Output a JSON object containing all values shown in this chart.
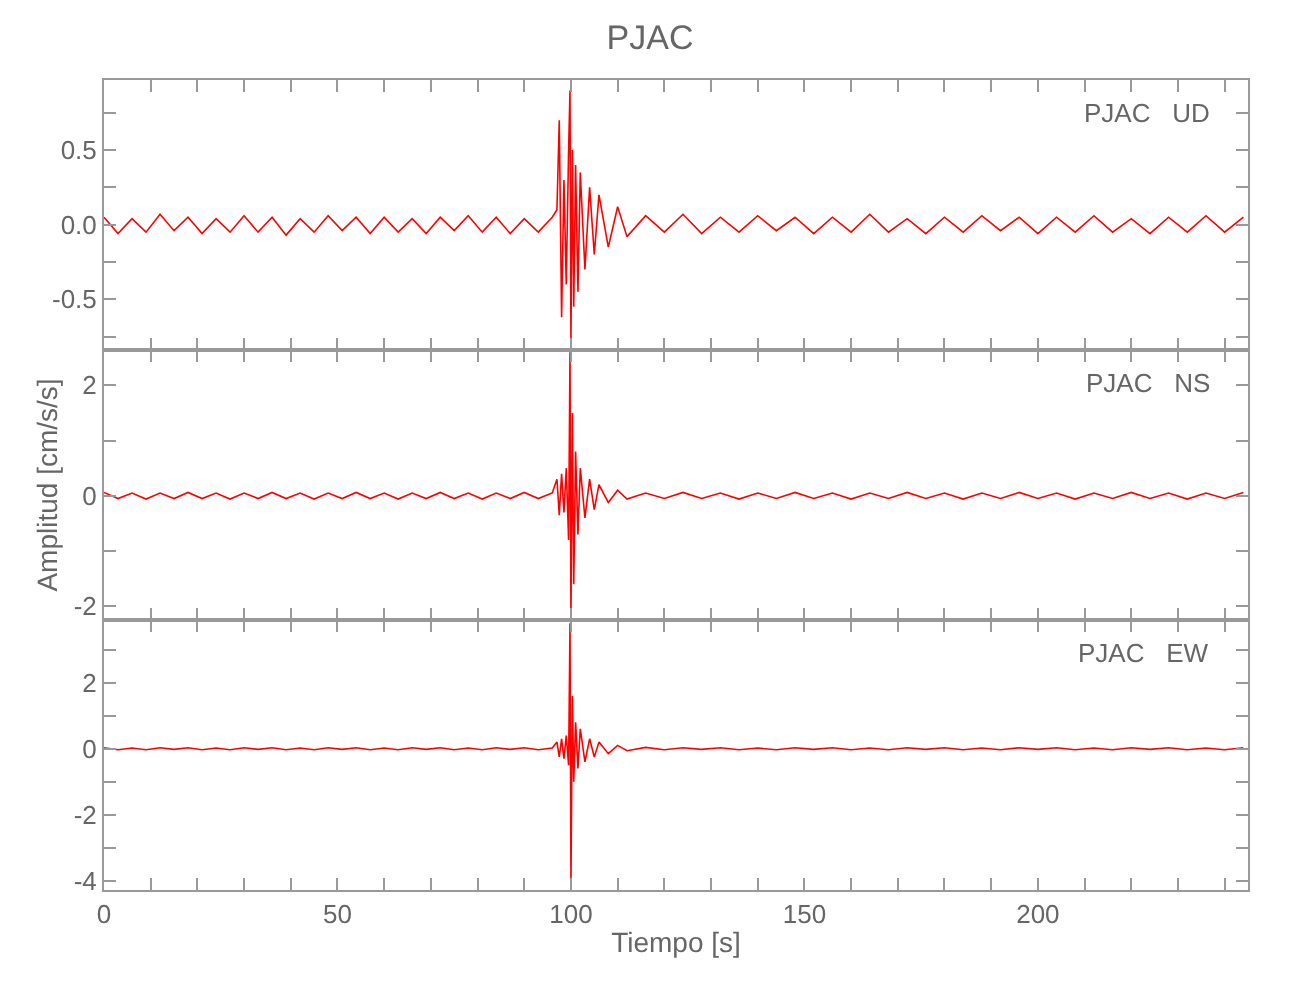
{
  "chart_data": [
    {
      "type": "line",
      "title": "PJAC",
      "annotations": [
        "PJAC   UD"
      ],
      "tick_labels": "y",
      "x": [
        0,
        3,
        6,
        9,
        12,
        15,
        18,
        21,
        24,
        27,
        30,
        33,
        36,
        39,
        42,
        45,
        48,
        51,
        54,
        57,
        60,
        63,
        66,
        69,
        72,
        75,
        78,
        81,
        84,
        87,
        90,
        93,
        96,
        97,
        97.5,
        98,
        98.5,
        99,
        99.5,
        99.8,
        100,
        100.3,
        100.6,
        101,
        101.5,
        102,
        103,
        104,
        105,
        106,
        108,
        110,
        112,
        116,
        120,
        124,
        128,
        132,
        136,
        140,
        144,
        148,
        152,
        156,
        160,
        164,
        168,
        172,
        176,
        180,
        184,
        188,
        192,
        196,
        200,
        204,
        208,
        212,
        216,
        220,
        224,
        228,
        232,
        236,
        240,
        244
      ],
      "series": [
        {
          "color": "#ff0000",
          "values": [
            0.05,
            -0.06,
            0.04,
            -0.05,
            0.07,
            -0.04,
            0.05,
            -0.06,
            0.04,
            -0.05,
            0.06,
            -0.05,
            0.05,
            -0.07,
            0.04,
            -0.05,
            0.06,
            -0.04,
            0.05,
            -0.06,
            0.05,
            -0.05,
            0.04,
            -0.06,
            0.05,
            -0.04,
            0.06,
            -0.05,
            0.05,
            -0.06,
            0.04,
            -0.05,
            0.05,
            0.1,
            0.7,
            -0.62,
            0.3,
            -0.4,
            0.5,
            0.9,
            -0.78,
            0.5,
            -0.55,
            0.4,
            -0.45,
            0.35,
            -0.3,
            0.25,
            -0.2,
            0.2,
            -0.15,
            0.12,
            -0.08,
            0.06,
            -0.05,
            0.07,
            -0.06,
            0.05,
            -0.05,
            0.06,
            -0.04,
            0.05,
            -0.06,
            0.05,
            -0.05,
            0.07,
            -0.05,
            0.04,
            -0.06,
            0.05,
            -0.05,
            0.06,
            -0.04,
            0.05,
            -0.06,
            0.05,
            -0.05,
            0.06,
            -0.05,
            0.04,
            -0.06,
            0.05,
            -0.05,
            0.06,
            -0.05,
            0.05
          ]
        }
      ],
      "xlim": [
        0,
        245
      ],
      "xticks": [
        0,
        {
          "value": 10,
          "label": null
        },
        {
          "value": 20,
          "label": null
        },
        {
          "value": 30,
          "label": null
        },
        {
          "value": 40,
          "label": null
        },
        50,
        {
          "value": 60,
          "label": null
        },
        {
          "value": 70,
          "label": null
        },
        {
          "value": 80,
          "label": null
        },
        {
          "value": 90,
          "label": null
        },
        100,
        {
          "value": 110,
          "label": null
        },
        {
          "value": 120,
          "label": null
        },
        {
          "value": 130,
          "label": null
        },
        {
          "value": 140,
          "label": null
        },
        150,
        {
          "value": 160,
          "label": null
        },
        {
          "value": 170,
          "label": null
        },
        {
          "value": 180,
          "label": null
        },
        {
          "value": 190,
          "label": null
        },
        200,
        {
          "value": 210,
          "label": null
        },
        {
          "value": 220,
          "label": null
        },
        {
          "value": 230,
          "label": null
        },
        {
          "value": 240,
          "label": null
        }
      ],
      "ylim": [
        -0.84,
        0.97
      ],
      "yticks": [
        {
          "value": -0.75,
          "label": null
        },
        -0.5,
        {
          "value": -0.25,
          "label": null
        },
        {
          "value": 0,
          "label": "0.0"
        },
        {
          "value": 0.25,
          "label": null
        },
        0.5,
        {
          "value": 0.75,
          "label": null
        }
      ]
    },
    {
      "type": "line",
      "ylabel": "Amplitud [cm/s/s]",
      "annotations": [
        "PJAC   NS"
      ],
      "tick_labels": "y",
      "x": [
        0,
        3,
        6,
        9,
        12,
        15,
        18,
        21,
        24,
        27,
        30,
        33,
        36,
        39,
        42,
        45,
        48,
        51,
        54,
        57,
        60,
        63,
        66,
        69,
        72,
        75,
        78,
        81,
        84,
        87,
        90,
        93,
        96,
        97,
        97.5,
        98,
        98.5,
        99,
        99.5,
        99.8,
        100,
        100.3,
        100.6,
        101,
        101.5,
        102,
        103,
        104,
        105,
        106,
        108,
        110,
        112,
        116,
        120,
        124,
        128,
        132,
        136,
        140,
        144,
        148,
        152,
        156,
        160,
        164,
        168,
        172,
        176,
        180,
        184,
        188,
        192,
        196,
        200,
        204,
        208,
        212,
        216,
        220,
        224,
        228,
        232,
        236,
        240,
        244
      ],
      "series": [
        {
          "color": "#ff0000",
          "values": [
            0.06,
            -0.05,
            0.05,
            -0.06,
            0.05,
            -0.05,
            0.06,
            -0.05,
            0.05,
            -0.06,
            0.05,
            -0.05,
            0.06,
            -0.05,
            0.05,
            -0.06,
            0.05,
            -0.05,
            0.06,
            -0.05,
            0.05,
            -0.06,
            0.05,
            -0.05,
            0.06,
            -0.05,
            0.05,
            -0.06,
            0.05,
            -0.05,
            0.06,
            -0.05,
            0.05,
            0.3,
            -0.35,
            0.4,
            -0.3,
            0.5,
            -0.8,
            2.6,
            -2.2,
            1.5,
            -1.6,
            0.8,
            -0.7,
            0.5,
            -0.4,
            0.3,
            -0.25,
            0.2,
            -0.12,
            0.1,
            -0.06,
            0.05,
            -0.05,
            0.06,
            -0.05,
            0.05,
            -0.06,
            0.05,
            -0.05,
            0.06,
            -0.05,
            0.05,
            -0.06,
            0.05,
            -0.05,
            0.06,
            -0.05,
            0.05,
            -0.06,
            0.05,
            -0.05,
            0.06,
            -0.05,
            0.05,
            -0.06,
            0.05,
            -0.05,
            0.06,
            -0.05,
            0.05,
            -0.06,
            0.05,
            -0.05,
            0.06
          ]
        }
      ],
      "xlim": [
        0,
        245
      ],
      "xticks": [
        0,
        {
          "value": 10,
          "label": null
        },
        {
          "value": 20,
          "label": null
        },
        {
          "value": 30,
          "label": null
        },
        {
          "value": 40,
          "label": null
        },
        50,
        {
          "value": 60,
          "label": null
        },
        {
          "value": 70,
          "label": null
        },
        {
          "value": 80,
          "label": null
        },
        {
          "value": 90,
          "label": null
        },
        100,
        {
          "value": 110,
          "label": null
        },
        {
          "value": 120,
          "label": null
        },
        {
          "value": 130,
          "label": null
        },
        {
          "value": 140,
          "label": null
        },
        150,
        {
          "value": 160,
          "label": null
        },
        {
          "value": 170,
          "label": null
        },
        {
          "value": 180,
          "label": null
        },
        {
          "value": 190,
          "label": null
        },
        200,
        {
          "value": 210,
          "label": null
        },
        {
          "value": 220,
          "label": null
        },
        {
          "value": 230,
          "label": null
        },
        {
          "value": 240,
          "label": null
        }
      ],
      "ylim": [
        -2.25,
        2.64
      ],
      "yticks": [
        -2,
        {
          "value": -1,
          "label": null
        },
        0,
        {
          "value": 1,
          "label": null
        },
        2
      ]
    },
    {
      "type": "line",
      "xlabel": "Tiempo [s]",
      "annotations": [
        "PJAC   EW"
      ],
      "x": [
        0,
        3,
        6,
        9,
        12,
        15,
        18,
        21,
        24,
        27,
        30,
        33,
        36,
        39,
        42,
        45,
        48,
        51,
        54,
        57,
        60,
        63,
        66,
        69,
        72,
        75,
        78,
        81,
        84,
        87,
        90,
        93,
        96,
        97,
        97.5,
        98,
        98.5,
        99,
        99.5,
        99.8,
        100,
        100.3,
        100.6,
        101,
        101.5,
        102,
        103,
        104,
        105,
        106,
        108,
        110,
        112,
        116,
        120,
        124,
        128,
        132,
        136,
        140,
        144,
        148,
        152,
        156,
        160,
        164,
        168,
        172,
        176,
        180,
        184,
        188,
        192,
        196,
        200,
        204,
        208,
        212,
        216,
        220,
        224,
        228,
        232,
        236,
        240,
        244
      ],
      "series": [
        {
          "color": "#ff0000",
          "values": [
            0.03,
            -0.03,
            0.02,
            -0.03,
            0.03,
            -0.02,
            0.03,
            -0.03,
            0.02,
            -0.03,
            0.03,
            -0.02,
            0.03,
            -0.03,
            0.02,
            -0.03,
            0.03,
            -0.02,
            0.03,
            -0.03,
            0.02,
            -0.03,
            0.03,
            -0.02,
            0.03,
            -0.03,
            0.02,
            -0.03,
            0.03,
            -0.02,
            0.03,
            -0.03,
            0.02,
            0.2,
            -0.25,
            0.3,
            -0.3,
            0.4,
            -0.5,
            3.8,
            -4.1,
            1.6,
            -1.0,
            0.8,
            -0.6,
            0.6,
            -0.4,
            0.3,
            -0.25,
            0.2,
            -0.15,
            0.1,
            -0.06,
            0.04,
            -0.03,
            0.03,
            -0.02,
            0.03,
            -0.03,
            0.02,
            -0.03,
            0.03,
            -0.02,
            0.03,
            -0.03,
            0.02,
            -0.03,
            0.03,
            -0.02,
            0.03,
            -0.03,
            0.02,
            -0.03,
            0.03,
            -0.02,
            0.03,
            -0.03,
            0.02,
            -0.03,
            0.03,
            -0.02,
            0.03,
            -0.03,
            0.02,
            -0.03,
            0.03
          ]
        }
      ],
      "xlim": [
        0,
        245
      ],
      "xticks": [
        0,
        {
          "value": 10,
          "label": null
        },
        {
          "value": 20,
          "label": null
        },
        {
          "value": 30,
          "label": null
        },
        {
          "value": 40,
          "label": null
        },
        50,
        {
          "value": 60,
          "label": null
        },
        {
          "value": 70,
          "label": null
        },
        {
          "value": 80,
          "label": null
        },
        {
          "value": 90,
          "label": null
        },
        100,
        {
          "value": 110,
          "label": null
        },
        {
          "value": 120,
          "label": null
        },
        {
          "value": 130,
          "label": null
        },
        {
          "value": 140,
          "label": null
        },
        150,
        {
          "value": 160,
          "label": null
        },
        {
          "value": 170,
          "label": null
        },
        {
          "value": 180,
          "label": null
        },
        {
          "value": 190,
          "label": null
        },
        200,
        {
          "value": 210,
          "label": null
        },
        {
          "value": 220,
          "label": null
        },
        {
          "value": 230,
          "label": null
        },
        {
          "value": 240,
          "label": null
        }
      ],
      "ylim": [
        -4.28,
        3.9
      ],
      "yticks": [
        {
          "value": -4,
          "label": "-4"
        },
        {
          "value": -3,
          "label": null
        },
        -2,
        {
          "value": -1,
          "label": null
        },
        0,
        {
          "value": 1,
          "label": null
        },
        2,
        {
          "value": 3,
          "label": null
        }
      ]
    }
  ]
}
